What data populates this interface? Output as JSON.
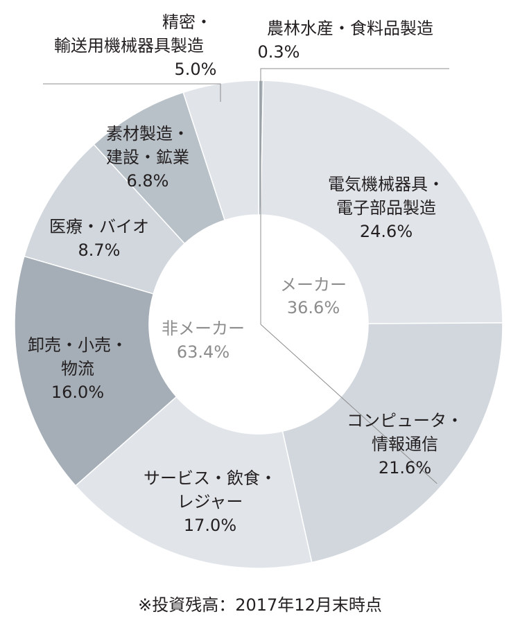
{
  "chart_data": {
    "type": "donut",
    "unit": "%",
    "slices": [
      {
        "label_lines": [
          "農林水産・食料品製造"
        ],
        "pct_text": "0.3%",
        "value": 0.3,
        "color": "#aab4bd"
      },
      {
        "label_lines": [
          "電気機械器具・",
          "電子部品製造"
        ],
        "pct_text": "24.6%",
        "value": 24.6,
        "color": "#e1e5ea"
      },
      {
        "label_lines": [
          "コンピュータ・",
          "情報通信"
        ],
        "pct_text": "21.6%",
        "value": 21.6,
        "color": "#d1d7dd"
      },
      {
        "label_lines": [
          "サービス・飲食・",
          "レジャー"
        ],
        "pct_text": "17.0%",
        "value": 17.0,
        "color": "#e1e5ea"
      },
      {
        "label_lines": [
          "卸売・小売・",
          "物流"
        ],
        "pct_text": "16.0%",
        "value": 16.0,
        "color": "#a5aeb6"
      },
      {
        "label_lines": [
          "医療・バイオ"
        ],
        "pct_text": "8.7%",
        "value": 8.7,
        "color": "#d1d7dd"
      },
      {
        "label_lines": [
          "素材製造・",
          "建設・鉱業"
        ],
        "pct_text": "6.8%",
        "value": 6.8,
        "color": "#b9c1c8"
      },
      {
        "label_lines": [
          "精密・",
          "輸送用機械器具製造"
        ],
        "pct_text": "5.0%",
        "value": 5.0,
        "color": "#e1e5ea"
      }
    ],
    "groups": [
      {
        "label": "メーカー",
        "pct_text": "36.6%",
        "value": 36.6
      },
      {
        "label": "非メーカー",
        "pct_text": "63.4%",
        "value": 63.4
      }
    ]
  },
  "footnote": "※投資残高：2017年12月末時点"
}
